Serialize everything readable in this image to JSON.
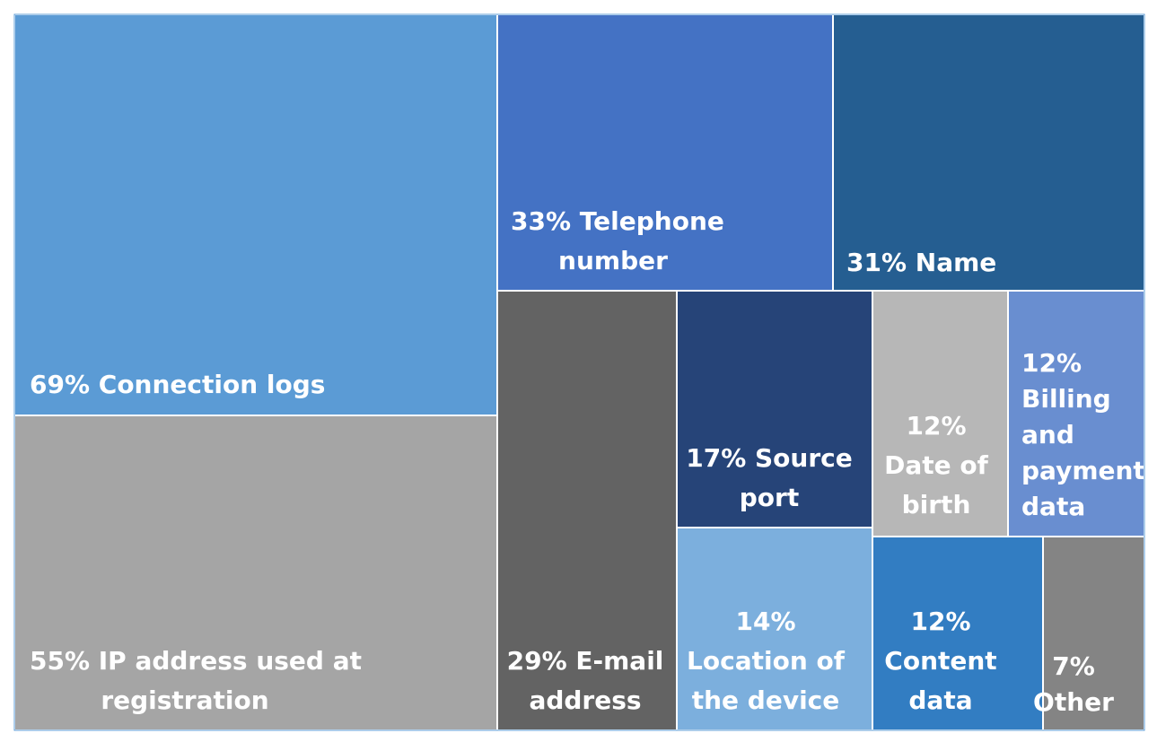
{
  "chart_data": {
    "type": "treemap",
    "title": "",
    "unit": "%",
    "items": [
      {
        "id": "connection-logs",
        "value": 69,
        "lines": [
          "69% Connection logs"
        ],
        "color": "#5b9bd5"
      },
      {
        "id": "ip-address",
        "value": 55,
        "lines": [
          "55% IP address used at",
          "registration"
        ],
        "color": "#a5a5a5"
      },
      {
        "id": "telephone",
        "value": 33,
        "lines": [
          "33% Telephone",
          "number"
        ],
        "color": "#4472c4"
      },
      {
        "id": "name",
        "value": 31,
        "lines": [
          "31% Name"
        ],
        "color": "#255e91"
      },
      {
        "id": "email",
        "value": 29,
        "lines": [
          "29% E-mail",
          "address"
        ],
        "color": "#636363"
      },
      {
        "id": "source-port",
        "value": 17,
        "lines": [
          "17% Source",
          "port"
        ],
        "color": "#264478"
      },
      {
        "id": "location",
        "value": 14,
        "lines": [
          "14%",
          "Location of",
          "the device"
        ],
        "color": "#7cafdd"
      },
      {
        "id": "date-of-birth",
        "value": 12,
        "lines": [
          "12%",
          "Date of",
          "birth"
        ],
        "color": "#b7b7b7"
      },
      {
        "id": "billing",
        "value": 12,
        "lines": [
          "12%",
          "Billing",
          "and",
          "payment",
          "data"
        ],
        "color": "#698ed0"
      },
      {
        "id": "content-data",
        "value": 12,
        "lines": [
          "12%",
          "Content",
          "data"
        ],
        "color": "#327dc2"
      },
      {
        "id": "other",
        "value": 7,
        "lines": [
          "7%",
          "Other"
        ],
        "color": "#848484"
      }
    ]
  }
}
